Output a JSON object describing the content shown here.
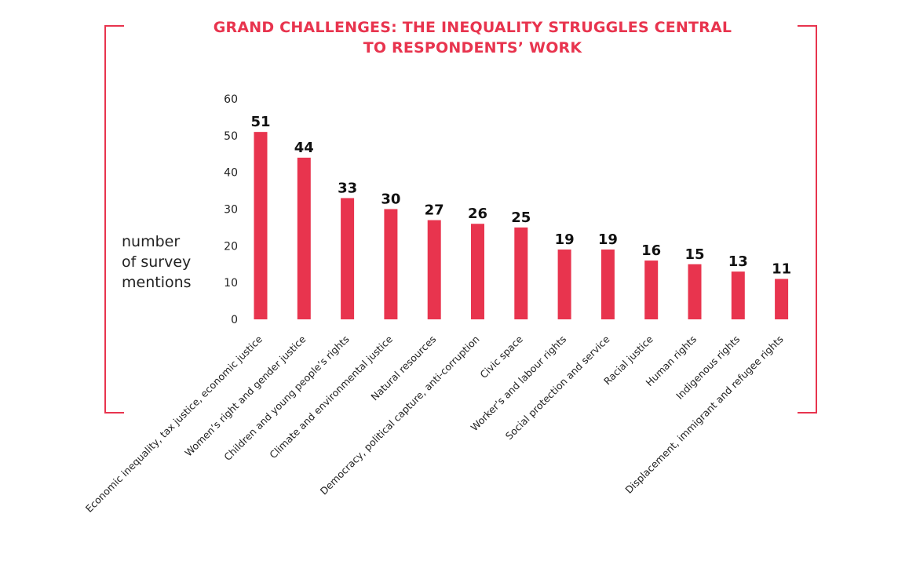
{
  "chart_data": {
    "type": "bar",
    "title": "GRAND CHALLENGES: THE INEQUALITY STRUGGLES CENTRAL TO RESPONDENTS’ WORK",
    "title_lines": [
      "GRAND CHALLENGES: THE INEQUALITY STRUGGLES CENTRAL",
      "TO RESPONDENTS’ WORK"
    ],
    "ylabel_lines": [
      "number",
      "of survey",
      "mentions"
    ],
    "xlabel": "",
    "ylim": [
      0,
      60
    ],
    "yticks": [
      0,
      10,
      20,
      30,
      40,
      50,
      60
    ],
    "grid": false,
    "bar_color": "#e8344e",
    "accent_color": "#e8344e",
    "categories": [
      "Economic inequality, tax justice, economic justice",
      "Women’s right and gender justice",
      "Children and young people’s rights",
      "Climate and environmental justice",
      "Natural resources",
      "Democracy, political capture, anti-corruption",
      "Civic space",
      "Worker’s and labour rights",
      "Social protection and service",
      "Racial justice",
      "Human rights",
      "Indigenous rights",
      "Displacement, immigrant and refugee rights"
    ],
    "values": [
      51,
      44,
      33,
      30,
      27,
      26,
      25,
      19,
      19,
      16,
      15,
      13,
      11
    ],
    "value_labels": [
      "51",
      "44",
      "33",
      "30",
      "27",
      "26",
      "25",
      "19",
      "19",
      "16",
      "15",
      "13",
      "11"
    ]
  }
}
